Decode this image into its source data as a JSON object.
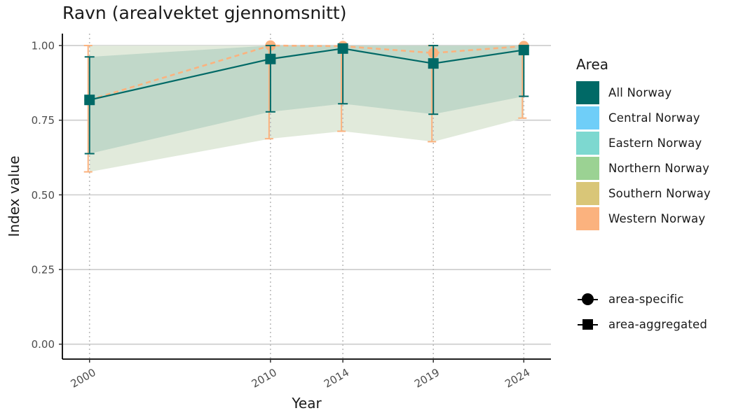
{
  "title": "Ravn (arealvektet gjennomsnitt)",
  "colors": {
    "all_norway": "#006966",
    "central_norway": "#6fcef8",
    "eastern_norway": "#7dd8d0",
    "northern_norway": "#9bd293",
    "southern_norway": "#d9c678",
    "western_norway": "#fbb27e",
    "grid": "#cccccc",
    "band_outer": "#e1eadb",
    "band_inner": "#c1d8c9"
  },
  "legend": {
    "title": "Area",
    "items": [
      {
        "label": "All Norway",
        "color": "#006966"
      },
      {
        "label": "Central Norway",
        "color": "#6fcef8"
      },
      {
        "label": "Eastern Norway",
        "color": "#7dd8d0"
      },
      {
        "label": "Northern Norway",
        "color": "#9bd293"
      },
      {
        "label": "Southern Norway",
        "color": "#d9c678"
      },
      {
        "label": "Western Norway",
        "color": "#fbb27e"
      }
    ],
    "shape_items": [
      {
        "label": "area-specific",
        "shape": "circle"
      },
      {
        "label": "area-aggregated",
        "shape": "square"
      }
    ]
  },
  "chart_data": {
    "type": "line",
    "title": "Ravn (arealvektet gjennomsnitt)",
    "xlabel": "Year",
    "ylabel": "Index value",
    "x": [
      2000,
      2010,
      2014,
      2019,
      2024
    ],
    "x_tick_labels": [
      "2000",
      "2010",
      "2014",
      "2019",
      "2024"
    ],
    "y_ticks": [
      0.0,
      0.25,
      0.5,
      0.75,
      1.0
    ],
    "y_tick_labels": [
      "0.00",
      "0.25",
      "0.50",
      "0.75",
      "1.00"
    ],
    "ylim": [
      -0.05,
      1.04
    ],
    "xlim": [
      1998.5,
      2025.5
    ],
    "grid": true,
    "legend_position": "right",
    "series": [
      {
        "name": "All Norway",
        "marker": "area-aggregated",
        "values": [
          0.818,
          0.955,
          0.99,
          0.94,
          0.985
        ],
        "lower": [
          0.638,
          0.778,
          0.805,
          0.77,
          0.83
        ],
        "upper": [
          0.962,
          1.0,
          1.0,
          1.0,
          1.0
        ]
      },
      {
        "name": "Western Norway",
        "marker": "area-specific",
        "values": [
          0.818,
          1.0,
          0.998,
          0.975,
          0.998
        ],
        "lower": [
          0.577,
          0.688,
          0.713,
          0.678,
          0.757
        ],
        "upper": [
          1.0,
          1.0,
          1.0,
          1.0,
          1.0
        ]
      }
    ]
  }
}
